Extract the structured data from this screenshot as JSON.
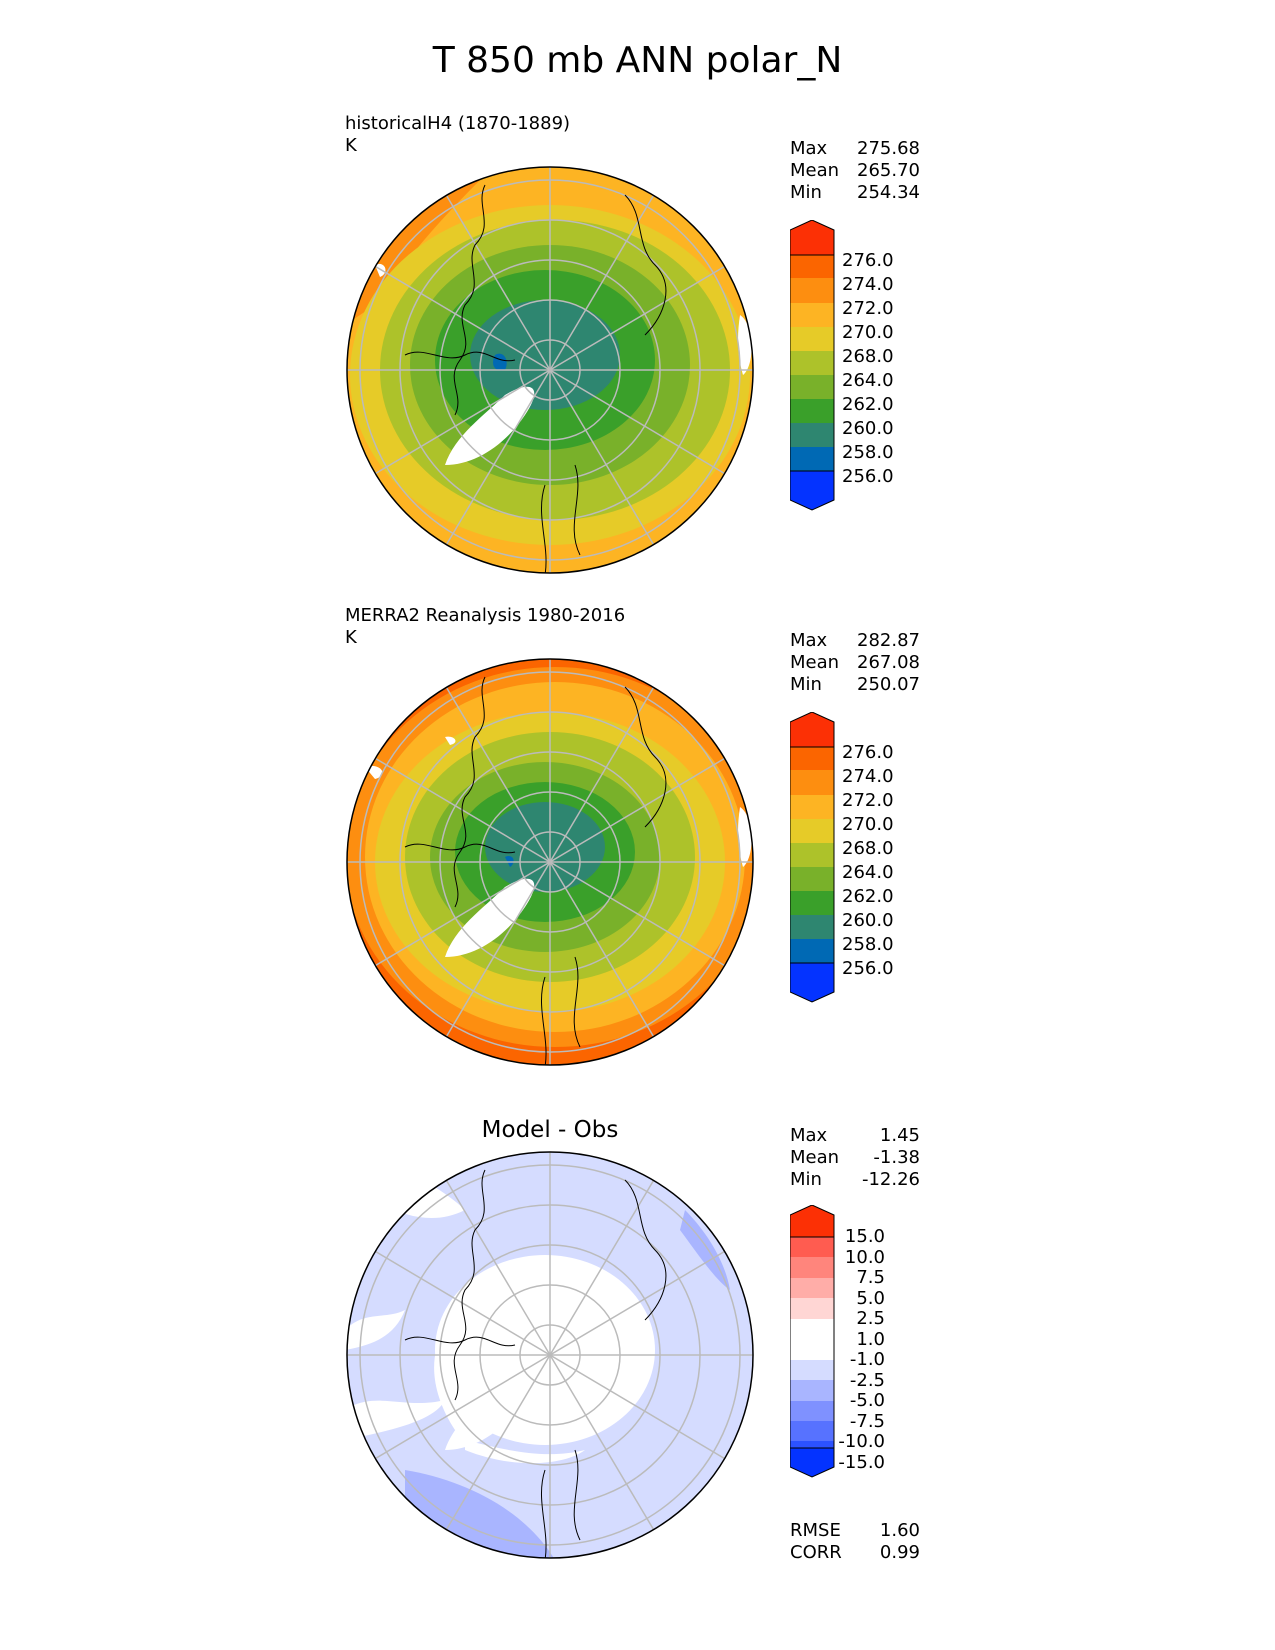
{
  "title": "T 850 mb ANN polar_N",
  "colors": {
    "abs_scale": [
      "#0433ff",
      "#0069b4",
      "#2e8670",
      "#3aa02a",
      "#79b12a",
      "#adc22a",
      "#e6cb28",
      "#fdb423",
      "#fd8e10",
      "#fb6500",
      "#fc3005",
      "#e80000"
    ],
    "diff_scale": [
      "#0433ff",
      "#2c52ff",
      "#5772ff",
      "#7f91ff",
      "#a9b5ff",
      "#d5dcff",
      "#ffffff",
      "#ffd6d4",
      "#ffada8",
      "#ff857c",
      "#ff5c50",
      "#fc3005"
    ]
  },
  "panels": [
    {
      "title": "historicalH4 (1870-1889)",
      "units": "K",
      "stats": [
        {
          "label": "Max",
          "value": "275.68"
        },
        {
          "label": "Mean",
          "value": "265.70"
        },
        {
          "label": "Min",
          "value": "254.34"
        }
      ],
      "colorbar_labels": [
        "276.0",
        "274.0",
        "272.0",
        "270.0",
        "268.0",
        "264.0",
        "262.0",
        "260.0",
        "258.0",
        "256.0"
      ]
    },
    {
      "title": "MERRA2 Reanalysis 1980-2016",
      "units": "K",
      "stats": [
        {
          "label": "Max",
          "value": "282.87"
        },
        {
          "label": "Mean",
          "value": "267.08"
        },
        {
          "label": "Min",
          "value": "250.07"
        }
      ],
      "colorbar_labels": [
        "276.0",
        "274.0",
        "272.0",
        "270.0",
        "268.0",
        "264.0",
        "262.0",
        "260.0",
        "258.0",
        "256.0"
      ]
    },
    {
      "title": "Model - Obs",
      "stats": [
        {
          "label": "Max",
          "value": "1.45"
        },
        {
          "label": "Mean",
          "value": "-1.38"
        },
        {
          "label": "Min",
          "value": "-12.26"
        }
      ],
      "colorbar_labels": [
        "15.0",
        "10.0",
        "7.5",
        "5.0",
        "2.5",
        "1.0",
        "-1.0",
        "-2.5",
        "-5.0",
        "-7.5",
        "-10.0",
        "-15.0"
      ],
      "metrics": [
        {
          "label": "RMSE",
          "value": "1.60"
        },
        {
          "label": "CORR",
          "value": "0.99"
        }
      ]
    }
  ]
}
